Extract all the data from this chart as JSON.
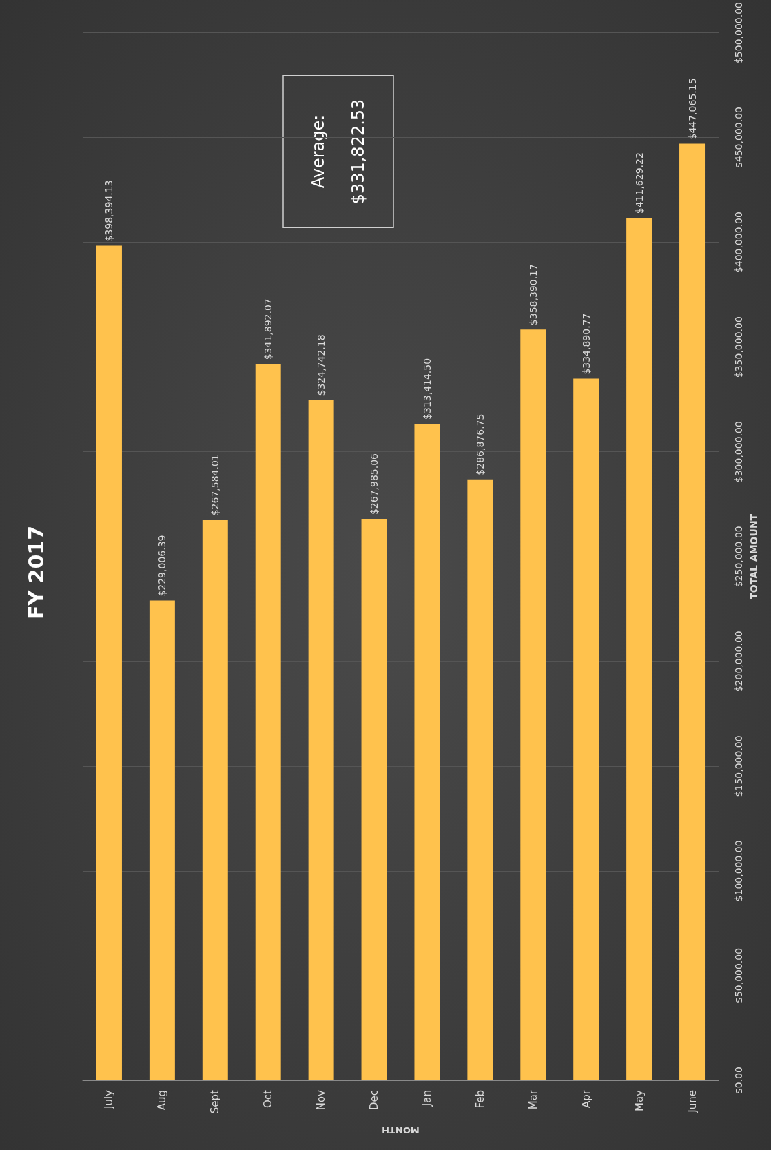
{
  "chart_data": {
    "type": "bar",
    "title": "FY 2017",
    "xlabel": "MONTH",
    "ylabel": "TOTAL AMOUNT",
    "categories": [
      "July",
      "Aug",
      "Sept",
      "Oct",
      "Nov",
      "Dec",
      "Jan",
      "Feb",
      "Mar",
      "Apr",
      "May",
      "June"
    ],
    "values": [
      398394.13,
      229006.39,
      267584.01,
      341892.07,
      324742.18,
      267985.06,
      313414.5,
      286876.75,
      358390.17,
      334890.77,
      411629.22,
      447065.15
    ],
    "value_labels": [
      "$398,394.13",
      "$229,006.39",
      "$267,584.01",
      "$341,892.07",
      "$324,742.18",
      "$267,985.06",
      "$313,414.50",
      "$286,876.75",
      "$358,390.17",
      "$334,890.77",
      "$411,629.22",
      "$447,065.15"
    ],
    "color": "#ffc24d",
    "ylim": [
      0,
      500000
    ],
    "yticks": [
      {
        "value": 0,
        "label": "$0.00"
      },
      {
        "value": 50000,
        "label": "$50,000.00"
      },
      {
        "value": 100000,
        "label": "$100,000.00"
      },
      {
        "value": 150000,
        "label": "$150,000.00"
      },
      {
        "value": 200000,
        "label": "$200,000.00"
      },
      {
        "value": 250000,
        "label": "$250,000.00"
      },
      {
        "value": 300000,
        "label": "$300,000.00"
      },
      {
        "value": 350000,
        "label": "$350,000.00"
      },
      {
        "value": 400000,
        "label": "$400,000.00"
      },
      {
        "value": 450000,
        "label": "$450,000.00"
      },
      {
        "value": 500000,
        "label": "$500,000.00"
      }
    ],
    "grid": "y",
    "annotations": [
      "Average:\n$331,822.53"
    ]
  }
}
